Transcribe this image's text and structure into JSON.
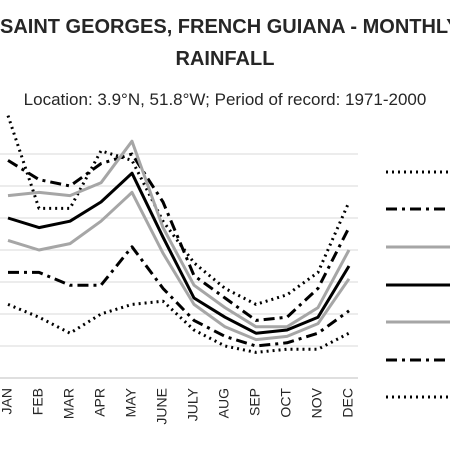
{
  "chart_data": {
    "type": "line",
    "title_lines": [
      "SAINT GEORGES, FRENCH GUIANA - MONTHLY",
      "RAINFALL"
    ],
    "subtitle": "Location: 3.9°N, 51.8°W; Period of record: 1971-2000",
    "categories": [
      "JAN",
      "FEB",
      "MAR",
      "APR",
      "MAY",
      "JUNE",
      "JULY",
      "AUG",
      "SEP",
      "OCT",
      "NOV",
      "DEC"
    ],
    "grid": true,
    "legend_position": "right",
    "series": [
      {
        "style": "dotted",
        "color": "#000000",
        "values": [
          8.2,
          5.3,
          5.3,
          7.1,
          6.8,
          4.9,
          3.6,
          2.8,
          2.3,
          2.6,
          3.3,
          5.5
        ]
      },
      {
        "style": "dash-dot",
        "color": "#000000",
        "values": [
          6.8,
          6.2,
          6.0,
          6.7,
          7.0,
          5.5,
          3.2,
          2.5,
          1.8,
          1.9,
          2.8,
          4.7
        ]
      },
      {
        "style": "solid",
        "color": "#a6a6a6",
        "values": [
          5.7,
          5.8,
          5.7,
          6.1,
          7.4,
          4.7,
          2.9,
          2.2,
          1.6,
          1.6,
          2.2,
          4.0
        ]
      },
      {
        "style": "solid",
        "color": "#000000",
        "values": [
          5.0,
          4.7,
          4.9,
          5.5,
          6.4,
          4.4,
          2.5,
          1.9,
          1.4,
          1.5,
          1.9,
          3.5
        ]
      },
      {
        "style": "solid",
        "color": "#a6a6a6",
        "values": [
          4.3,
          4.0,
          4.2,
          4.9,
          5.8,
          3.9,
          2.3,
          1.6,
          1.2,
          1.3,
          1.7,
          3.1
        ]
      },
      {
        "style": "dash-dot",
        "color": "#000000",
        "values": [
          3.3,
          3.3,
          2.9,
          2.9,
          4.1,
          2.8,
          1.8,
          1.3,
          1.0,
          1.1,
          1.4,
          2.1
        ]
      },
      {
        "style": "dotted",
        "color": "#000000",
        "values": [
          2.3,
          1.9,
          1.4,
          2.0,
          2.3,
          2.4,
          1.5,
          1.0,
          0.8,
          0.9,
          0.9,
          1.4
        ]
      }
    ]
  }
}
